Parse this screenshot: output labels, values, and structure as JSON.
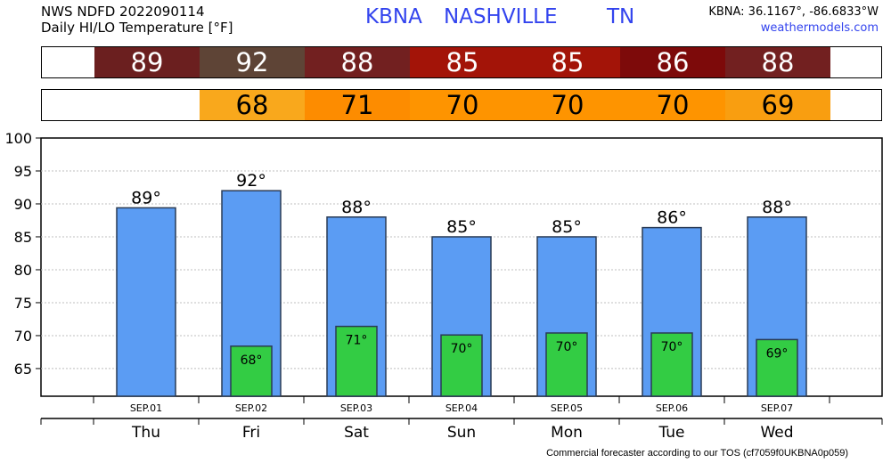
{
  "header": {
    "line1": "NWS NDFD 2022090114",
    "line2": "Daily HI/LO Temperature [°F]",
    "station": "KBNA",
    "city": "NASHVILLE",
    "state": "TN",
    "coords": "KBNA: 36.1167°, -86.6833°W",
    "site": "weathermodels.com"
  },
  "footer": "Commercial forecaster according to our TOS (cf7059f0UKBNA0p059)",
  "colors": {
    "hi_bar": "#5b9cf3",
    "lo_bar": "#33cc44",
    "grid": "#bfbfbf"
  },
  "hi_strip": [
    {
      "value": "89",
      "color": "#6b1f1f"
    },
    {
      "value": "92",
      "color": "#5e4436"
    },
    {
      "value": "88",
      "color": "#722020"
    },
    {
      "value": "85",
      "color": "#a31408"
    },
    {
      "value": "85",
      "color": "#a31408"
    },
    {
      "value": "86",
      "color": "#7d0a0a"
    },
    {
      "value": "88",
      "color": "#722020"
    }
  ],
  "lo_strip": [
    {
      "value": "",
      "color": "#ffffff"
    },
    {
      "value": "68",
      "color": "#f9a81c"
    },
    {
      "value": "71",
      "color": "#fd8c00"
    },
    {
      "value": "70",
      "color": "#fe9400"
    },
    {
      "value": "70",
      "color": "#fe9400"
    },
    {
      "value": "70",
      "color": "#fe9400"
    },
    {
      "value": "69",
      "color": "#f99e10"
    }
  ],
  "chart_data": {
    "type": "bar",
    "dates": [
      "SEP.01",
      "SEP.02",
      "SEP.03",
      "SEP.04",
      "SEP.05",
      "SEP.06",
      "SEP.07"
    ],
    "categories": [
      "Thu",
      "Fri",
      "Sat",
      "Sun",
      "Mon",
      "Tue",
      "Wed"
    ],
    "series": [
      {
        "values": [
          89.4,
          92.0,
          88.0,
          85.0,
          85.0,
          86.4,
          88.0
        ],
        "labels": [
          "89°",
          "92°",
          "88°",
          "85°",
          "85°",
          "86°",
          "88°"
        ]
      },
      {
        "values": [
          null,
          68.4,
          71.4,
          70.1,
          70.4,
          70.4,
          69.4
        ],
        "labels": [
          "",
          "68°",
          "71°",
          "70°",
          "70°",
          "70°",
          "69°"
        ]
      }
    ],
    "yticks": [
      65,
      70,
      75,
      80,
      85,
      90,
      95,
      100
    ],
    "ylim": [
      60.8,
      100
    ],
    "grid": true
  }
}
